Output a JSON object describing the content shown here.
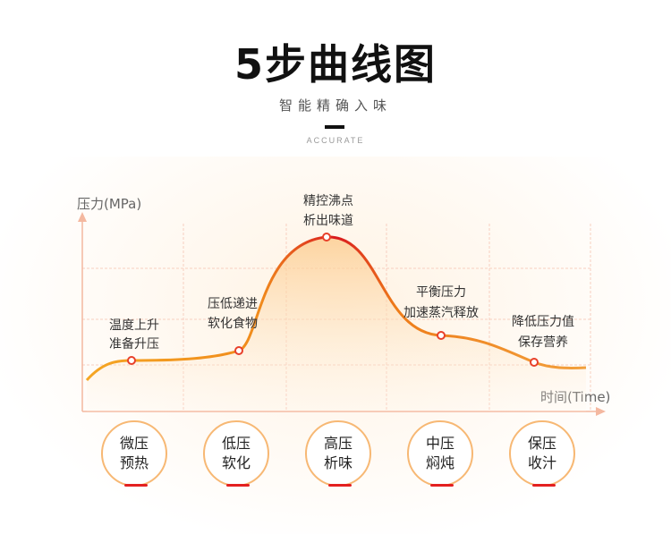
{
  "header": {
    "title": "5步曲线图",
    "subtitle": "智能精确入味",
    "tagline": "ACCURATE"
  },
  "chart": {
    "y_axis_label": "压力(MPa)",
    "x_axis_label": "时间(Time)",
    "annotations": [
      {
        "line1": "温度上升",
        "line2": "准备升压"
      },
      {
        "line1": "压低递进",
        "line2": "软化食物"
      },
      {
        "line1": "精控沸点",
        "line2": "析出味道"
      },
      {
        "line1": "平衡压力",
        "line2": "加速蒸汽释放"
      },
      {
        "line1": "降低压力值",
        "line2": "保存营养"
      }
    ]
  },
  "stages": [
    {
      "line1": "微压",
      "line2": "预热"
    },
    {
      "line1": "低压",
      "line2": "软化"
    },
    {
      "line1": "高压",
      "line2": "析味"
    },
    {
      "line1": "中压",
      "line2": "焖炖"
    },
    {
      "line1": "保压",
      "line2": "收汁"
    }
  ],
  "colors": {
    "curve_start": "#f5a623",
    "curve_peak": "#d9181e",
    "grid": "#f7cfc0",
    "axis": "#f4b8a0",
    "marker": "#e8402a",
    "stage_border": "#f7b874",
    "stage_underline": "#e32020"
  }
}
